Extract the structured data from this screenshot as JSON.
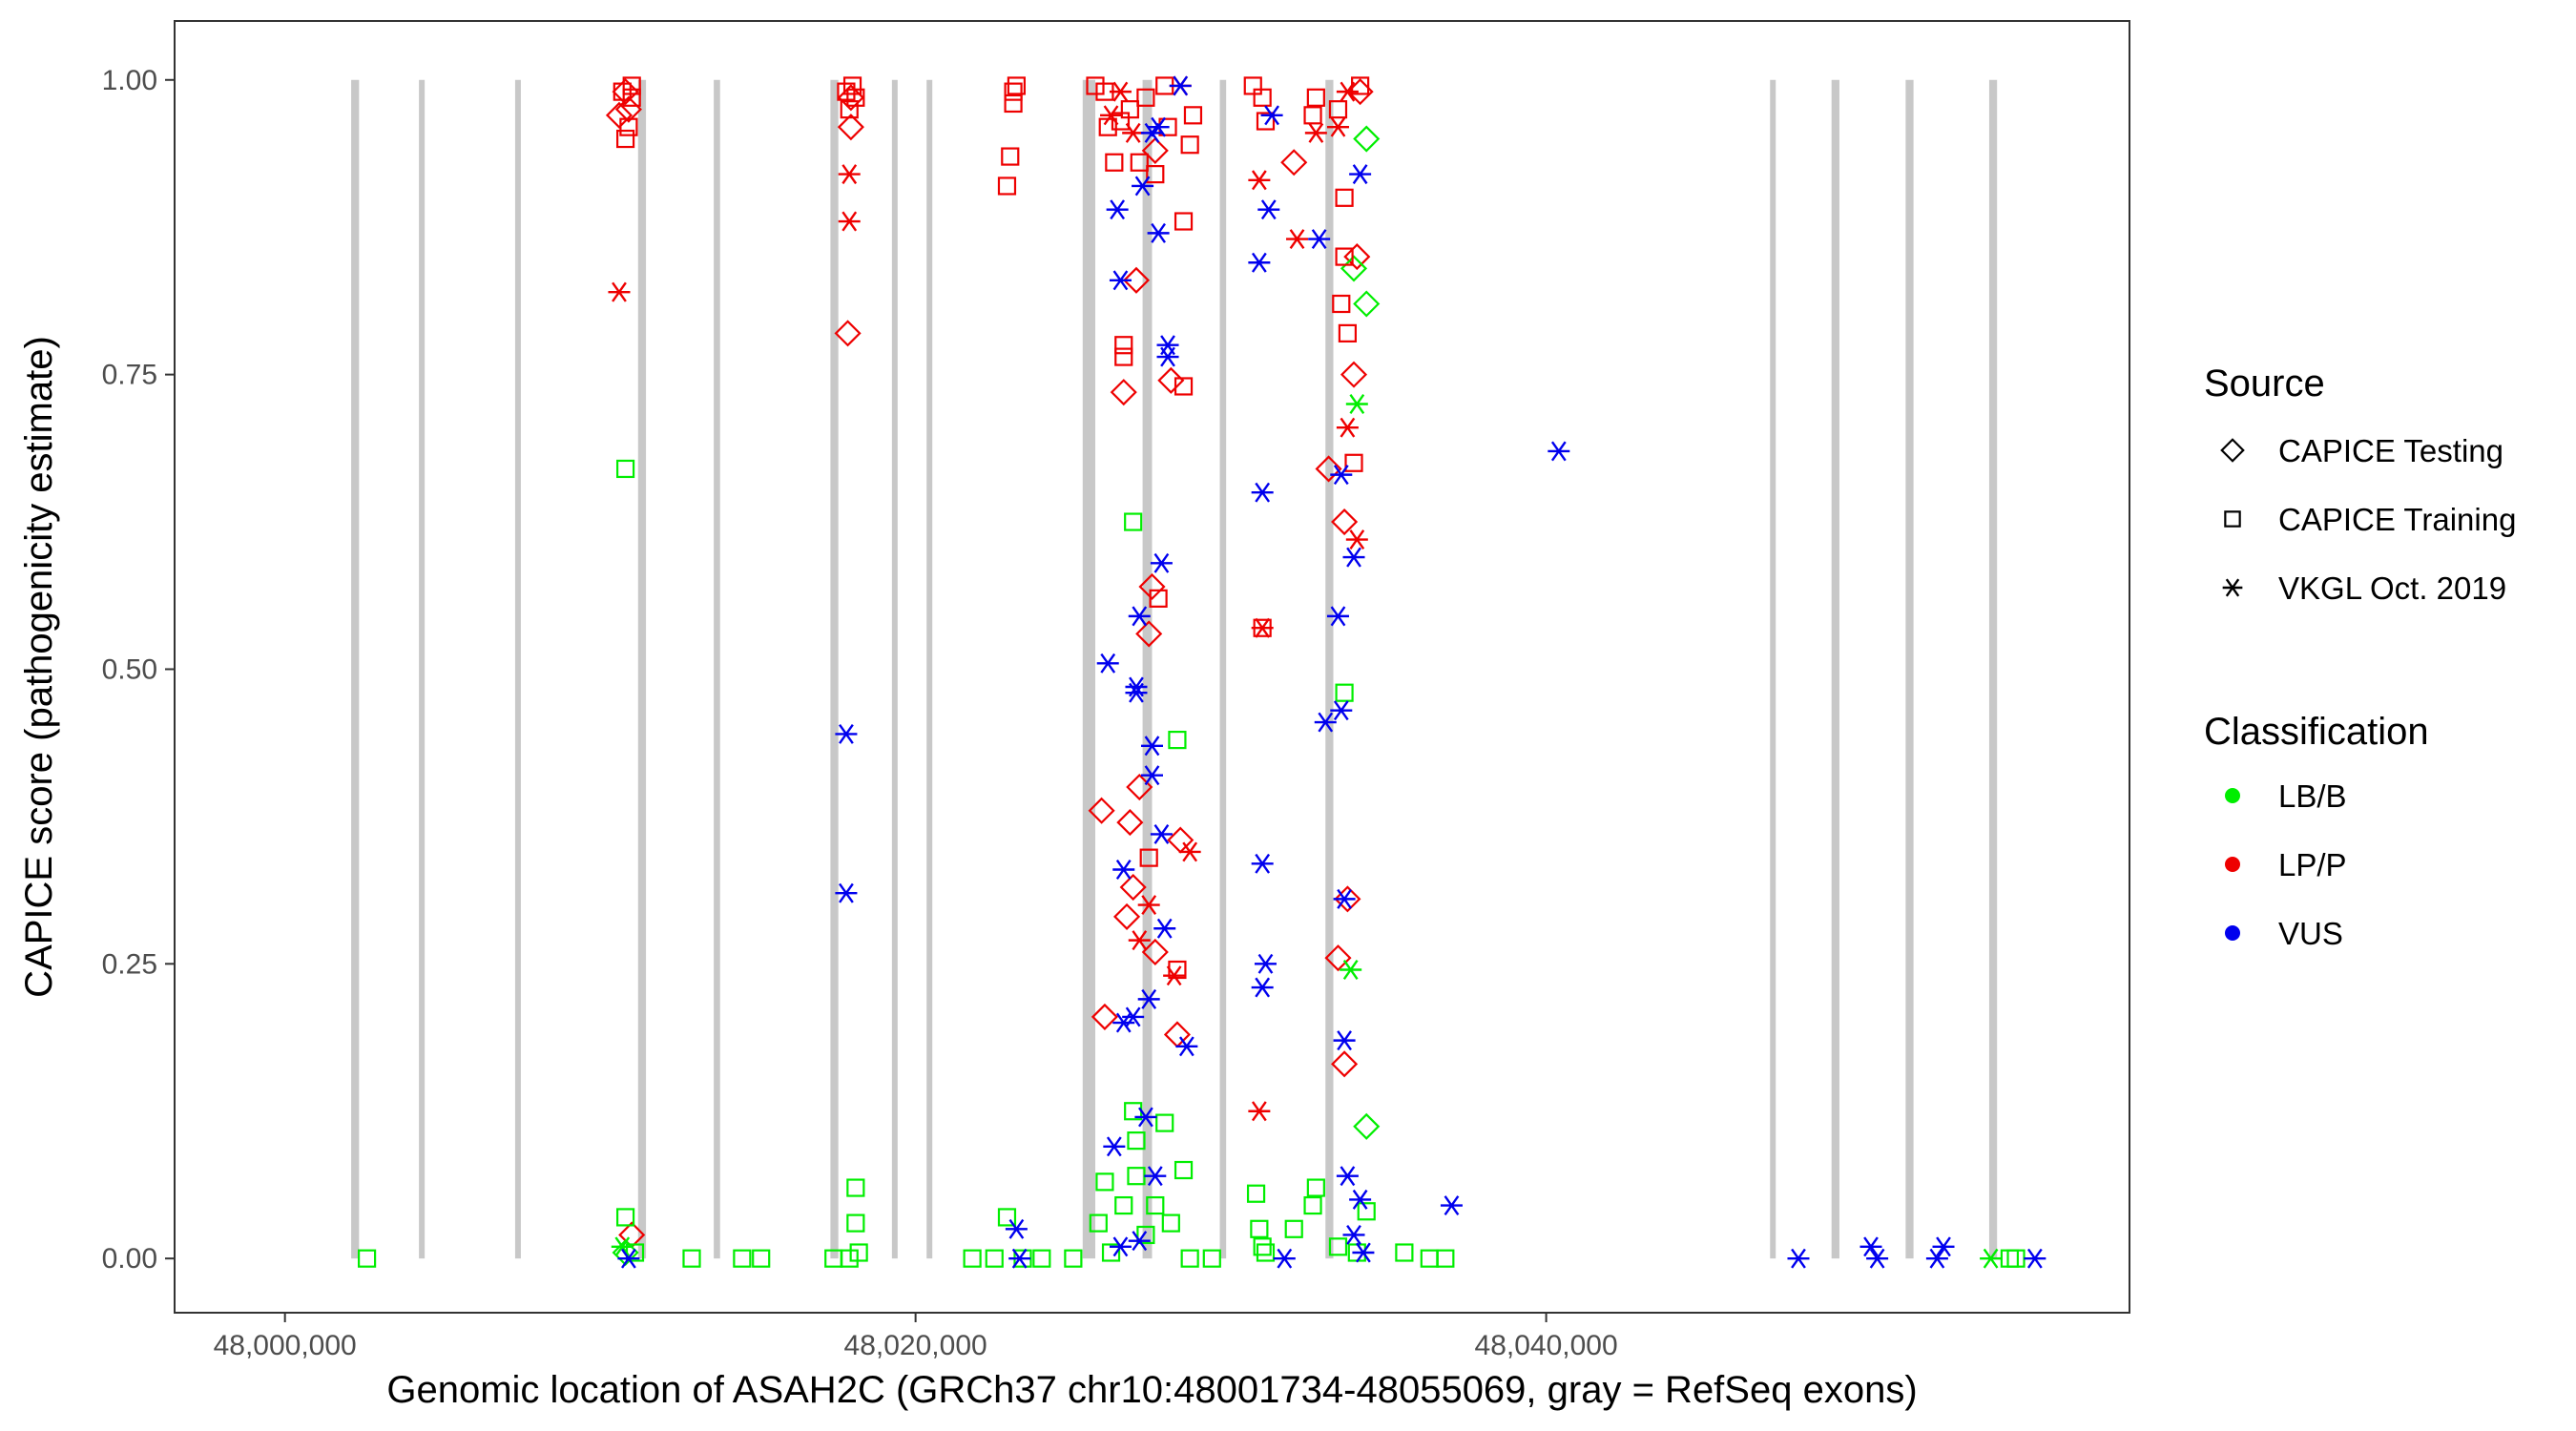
{
  "chart_data": {
    "type": "scatter",
    "xlabel": "Genomic location of ASAH2C (GRCh37 chr10:48001734-48055069, gray = RefSeq exons)",
    "ylabel": "CAPICE score (pathogenicity estimate)",
    "xlim": [
      47996500,
      48058500
    ],
    "ylim": [
      -0.046,
      1.05
    ],
    "x_ticks": [
      48000000,
      48020000,
      48040000
    ],
    "x_tick_labels": [
      "48,000,000",
      "48,020,000",
      "48,040,000"
    ],
    "y_ticks": [
      0,
      0.25,
      0.5,
      0.75,
      1
    ],
    "y_tick_labels": [
      "0.00",
      "0.25",
      "0.50",
      "0.75",
      "1.00"
    ],
    "grid": false,
    "exon_color": "#c8c8c8",
    "exons": [
      [
        48002100,
        48002350
      ],
      [
        48004250,
        48004400
      ],
      [
        48007300,
        48007450
      ],
      [
        48011200,
        48011450
      ],
      [
        48013600,
        48013800
      ],
      [
        48017300,
        48017550
      ],
      [
        48019250,
        48019400
      ],
      [
        48020350,
        48020500
      ],
      [
        48025300,
        48025700
      ],
      [
        48027200,
        48027500
      ],
      [
        48029650,
        48029850
      ],
      [
        48033000,
        48033250
      ],
      [
        48047100,
        48047250
      ],
      [
        48049050,
        48049300
      ],
      [
        48051400,
        48051650
      ],
      [
        48054050,
        48054300
      ]
    ],
    "legend_position": "right",
    "legend_source_title": "Source",
    "legend_class_title": "Classification",
    "shapes": [
      {
        "name": "CAPICE Testing",
        "symbol": "diamond"
      },
      {
        "name": "CAPICE Training",
        "symbol": "square"
      },
      {
        "name": "VKGL Oct. 2019",
        "symbol": "asterisk"
      }
    ],
    "classes": [
      {
        "name": "LB/B",
        "color": "#00ee00"
      },
      {
        "name": "LP/P",
        "color": "#ee0000"
      },
      {
        "name": "VUS",
        "color": "#0000ee"
      }
    ],
    "series": [
      {
        "shape": "diamond",
        "class": "LP/P",
        "points": [
          [
            48010600,
            0.97
          ],
          [
            48010800,
            0.99
          ],
          [
            48010900,
            0.975
          ],
          [
            48011000,
            0.02
          ],
          [
            48017950,
            0.96
          ],
          [
            48017950,
            0.985
          ],
          [
            48017850,
            0.785
          ],
          [
            48025900,
            0.38
          ],
          [
            48026000,
            0.205
          ],
          [
            48026600,
            0.735
          ],
          [
            48026700,
            0.29
          ],
          [
            48026800,
            0.37
          ],
          [
            48026900,
            0.315
          ],
          [
            48027000,
            0.83
          ],
          [
            48027100,
            0.4
          ],
          [
            48027400,
            0.53
          ],
          [
            48027500,
            0.57
          ],
          [
            48027600,
            0.26
          ],
          [
            48028100,
            0.745
          ],
          [
            48028300,
            0.19
          ],
          [
            48028400,
            0.355
          ],
          [
            48027600,
            0.94
          ],
          [
            48032000,
            0.93
          ],
          [
            48033100,
            0.67
          ],
          [
            48033400,
            0.255
          ],
          [
            48033600,
            0.165
          ],
          [
            48033600,
            0.625
          ],
          [
            48033700,
            0.305
          ],
          [
            48033900,
            0.75
          ],
          [
            48034000,
            0.85
          ],
          [
            48034100,
            0.99
          ]
        ]
      },
      {
        "shape": "diamond",
        "class": "LB/B",
        "points": [
          [
            48034300,
            0.95
          ],
          [
            48033900,
            0.84
          ],
          [
            48034300,
            0.81
          ],
          [
            48034300,
            0.112
          ],
          [
            48010800,
            0.005
          ]
        ]
      },
      {
        "shape": "square",
        "class": "LP/P",
        "points": [
          [
            48010700,
            0.99
          ],
          [
            48010800,
            0.95
          ],
          [
            48010900,
            0.96
          ],
          [
            48011000,
            0.985
          ],
          [
            48011000,
            0.995
          ],
          [
            48017800,
            0.99
          ],
          [
            48017900,
            0.975
          ],
          [
            48018100,
            0.985
          ],
          [
            48018000,
            0.995
          ],
          [
            48022900,
            0.91
          ],
          [
            48023000,
            0.935
          ],
          [
            48023100,
            0.98
          ],
          [
            48023200,
            0.995
          ],
          [
            48023100,
            0.99
          ],
          [
            48025700,
            0.995
          ],
          [
            48026000,
            0.99
          ],
          [
            48026100,
            0.96
          ],
          [
            48026300,
            0.93
          ],
          [
            48026500,
            0.965
          ],
          [
            48026800,
            0.975
          ],
          [
            48027100,
            0.93
          ],
          [
            48027300,
            0.985
          ],
          [
            48027600,
            0.92
          ],
          [
            48027900,
            0.995
          ],
          [
            48028000,
            0.96
          ],
          [
            48028500,
            0.88
          ],
          [
            48028700,
            0.945
          ],
          [
            48028800,
            0.97
          ],
          [
            48026600,
            0.775
          ],
          [
            48026600,
            0.765
          ],
          [
            48027700,
            0.56
          ],
          [
            48028500,
            0.74
          ],
          [
            48027400,
            0.34
          ],
          [
            48028300,
            0.245
          ],
          [
            48030700,
            0.995
          ],
          [
            48031000,
            0.985
          ],
          [
            48031100,
            0.965
          ],
          [
            48031000,
            0.535
          ],
          [
            48032600,
            0.97
          ],
          [
            48032700,
            0.985
          ],
          [
            48033600,
            0.9
          ],
          [
            48033500,
            0.81
          ],
          [
            48033600,
            0.85
          ],
          [
            48033700,
            0.785
          ],
          [
            48033900,
            0.675
          ],
          [
            48034100,
            0.995
          ],
          [
            48033400,
            0.975
          ]
        ]
      },
      {
        "shape": "square",
        "class": "LB/B",
        "points": [
          [
            48002600,
            0
          ],
          [
            48010800,
            0.67
          ],
          [
            48010800,
            0.035
          ],
          [
            48011100,
            0.005
          ],
          [
            48012900,
            0
          ],
          [
            48014500,
            0
          ],
          [
            48015100,
            0
          ],
          [
            48017400,
            0
          ],
          [
            48017900,
            0
          ],
          [
            48018100,
            0.06
          ],
          [
            48018100,
            0.03
          ],
          [
            48018200,
            0.005
          ],
          [
            48021800,
            0
          ],
          [
            48022500,
            0
          ],
          [
            48022900,
            0.035
          ],
          [
            48023400,
            0
          ],
          [
            48024000,
            0
          ],
          [
            48025000,
            0
          ],
          [
            48025800,
            0.03
          ],
          [
            48026000,
            0.065
          ],
          [
            48026200,
            0.005
          ],
          [
            48026600,
            0.045
          ],
          [
            48026900,
            0.625
          ],
          [
            48026900,
            0.125
          ],
          [
            48027000,
            0.1
          ],
          [
            48027000,
            0.07
          ],
          [
            48027300,
            0.02
          ],
          [
            48027600,
            0.045
          ],
          [
            48027900,
            0.115
          ],
          [
            48028100,
            0.03
          ],
          [
            48028300,
            0.44
          ],
          [
            48028500,
            0.075
          ],
          [
            48028700,
            0
          ],
          [
            48029400,
            0
          ],
          [
            48030800,
            0.055
          ],
          [
            48030900,
            0.025
          ],
          [
            48031000,
            0.01
          ],
          [
            48031100,
            0.005
          ],
          [
            48032000,
            0.025
          ],
          [
            48032600,
            0.045
          ],
          [
            48032700,
            0.06
          ],
          [
            48033400,
            0.01
          ],
          [
            48033600,
            0.48
          ],
          [
            48034000,
            0.005
          ],
          [
            48034300,
            0.04
          ],
          [
            48035500,
            0.005
          ],
          [
            48036300,
            0.0
          ],
          [
            48036800,
            0.0
          ],
          [
            48054700,
            0
          ],
          [
            48054900,
            0
          ]
        ]
      },
      {
        "shape": "asterisk",
        "class": "LP/P",
        "points": [
          [
            48010600,
            0.82
          ],
          [
            48017900,
            0.92
          ],
          [
            48017900,
            0.88
          ],
          [
            48026200,
            0.97
          ],
          [
            48026500,
            0.99
          ],
          [
            48026900,
            0.955
          ],
          [
            48027100,
            0.27
          ],
          [
            48027400,
            0.3
          ],
          [
            48028200,
            0.24
          ],
          [
            48028700,
            0.345
          ],
          [
            48028400,
            0.995
          ],
          [
            48030900,
            0.915
          ],
          [
            48030900,
            0.125
          ],
          [
            48031000,
            0.535
          ],
          [
            48032100,
            0.865
          ],
          [
            48032700,
            0.955
          ],
          [
            48033400,
            0.96
          ],
          [
            48033700,
            0.705
          ],
          [
            48034000,
            0.61
          ],
          [
            48033700,
            0.99
          ]
        ]
      },
      {
        "shape": "asterisk",
        "class": "LB/B",
        "points": [
          [
            48034000,
            0.725
          ],
          [
            48033800,
            0.245
          ],
          [
            48054100,
            0
          ],
          [
            48010700,
            0.01
          ]
        ]
      },
      {
        "shape": "asterisk",
        "class": "VUS",
        "points": [
          [
            48010900,
            0
          ],
          [
            48017800,
            0.445
          ],
          [
            48017800,
            0.31
          ],
          [
            48023200,
            0.025
          ],
          [
            48023300,
            0
          ],
          [
            48026100,
            0.505
          ],
          [
            48026300,
            0.095
          ],
          [
            48026400,
            0.89
          ],
          [
            48026500,
            0.83
          ],
          [
            48026600,
            0.33
          ],
          [
            48026600,
            0.2
          ],
          [
            48026900,
            0.205
          ],
          [
            48027000,
            0.485
          ],
          [
            48027000,
            0.48
          ],
          [
            48027100,
            0.545
          ],
          [
            48027200,
            0.91
          ],
          [
            48027300,
            0.12
          ],
          [
            48027400,
            0.22
          ],
          [
            48027500,
            0.41
          ],
          [
            48027500,
            0.435
          ],
          [
            48027700,
            0.87
          ],
          [
            48027800,
            0.59
          ],
          [
            48027800,
            0.36
          ],
          [
            48027900,
            0.28
          ],
          [
            48028000,
            0.775
          ],
          [
            48028000,
            0.765
          ],
          [
            48028400,
            0.995
          ],
          [
            48028600,
            0.18
          ],
          [
            48027700,
            0.96
          ],
          [
            48027500,
            0.955
          ],
          [
            48027100,
            0.015
          ],
          [
            48026500,
            0.01
          ],
          [
            48027600,
            0.07
          ],
          [
            48030900,
            0.845
          ],
          [
            48031000,
            0.65
          ],
          [
            48031000,
            0.335
          ],
          [
            48031100,
            0.25
          ],
          [
            48031000,
            0.23
          ],
          [
            48031200,
            0.89
          ],
          [
            48031300,
            0.97
          ],
          [
            48031700,
            0
          ],
          [
            48032800,
            0.865
          ],
          [
            48033000,
            0.455
          ],
          [
            48033400,
            0.545
          ],
          [
            48033500,
            0.665
          ],
          [
            48033500,
            0.465
          ],
          [
            48033600,
            0.305
          ],
          [
            48033600,
            0.185
          ],
          [
            48033700,
            0.07
          ],
          [
            48033900,
            0.595
          ],
          [
            48034100,
            0.92
          ],
          [
            48034100,
            0.05
          ],
          [
            48033900,
            0.02
          ],
          [
            48034200,
            0.005
          ],
          [
            48037000,
            0.045
          ],
          [
            48040400,
            0.685
          ],
          [
            48048000,
            0
          ],
          [
            48050300,
            0.01
          ],
          [
            48050500,
            0
          ],
          [
            48052400,
            0
          ],
          [
            48052600,
            0.01
          ],
          [
            48055500,
            0
          ]
        ]
      }
    ]
  }
}
